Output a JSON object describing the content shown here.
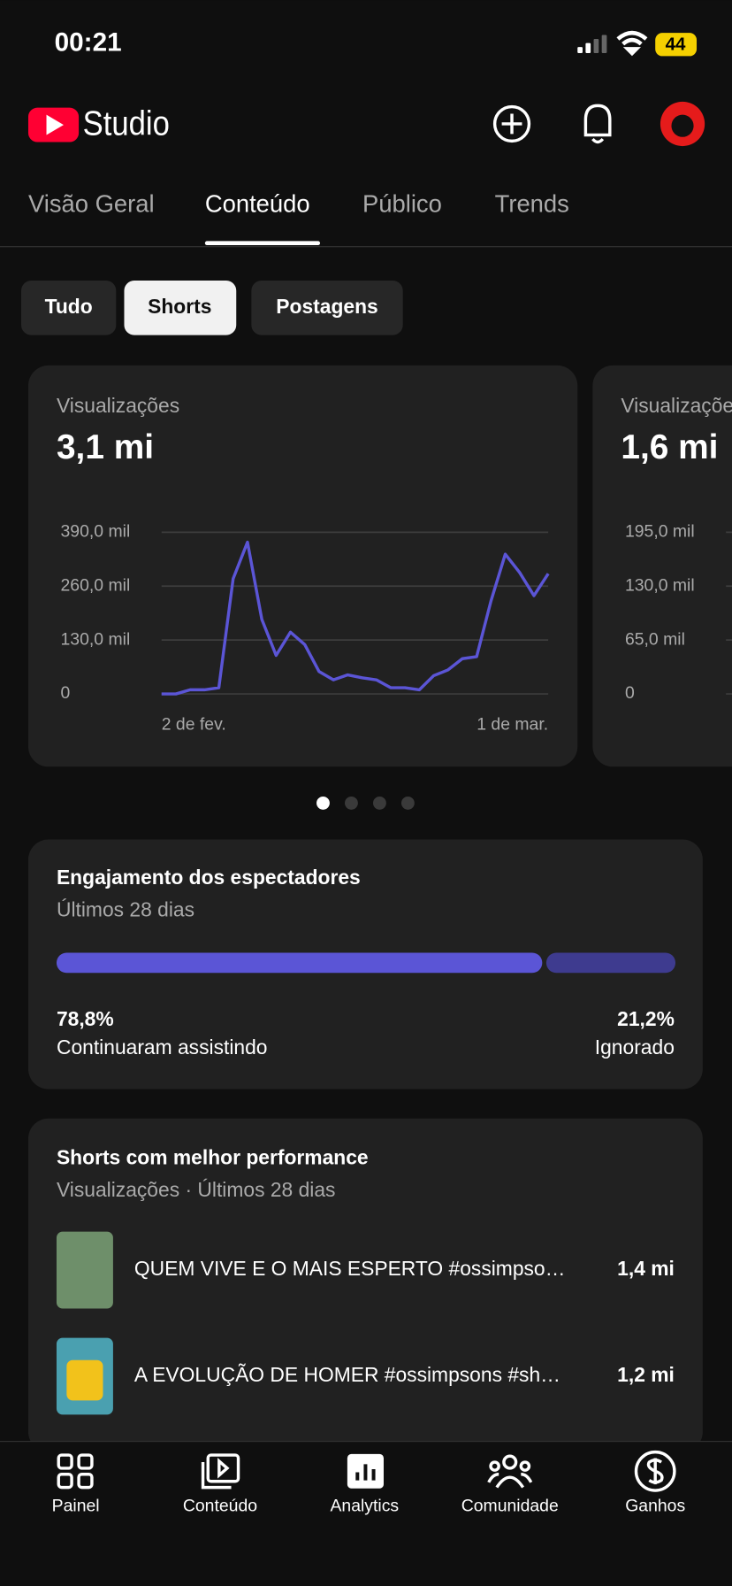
{
  "status_bar": {
    "time": "00:21",
    "battery": "44"
  },
  "header": {
    "app": "Studio"
  },
  "tabs": [
    "Visão Geral",
    "Conteúdo",
    "Público",
    "Trends"
  ],
  "chips": [
    "Tudo",
    "Shorts",
    "Postagens"
  ],
  "cards": [
    {
      "chart_data": {
        "type": "line",
        "title": "Visualizações",
        "total": "3,1 mi",
        "color": "#5b55d6",
        "grid": true,
        "categories": [
          "2 de fev.",
          null,
          null,
          null,
          null,
          null,
          null,
          null,
          null,
          null,
          null,
          null,
          null,
          null,
          null,
          null,
          null,
          null,
          null,
          null,
          null,
          null,
          null,
          null,
          null,
          null,
          null,
          "1 de mar."
        ],
        "values": [
          0,
          0,
          10000,
          10000,
          15000,
          278000,
          366000,
          180000,
          93000,
          149000,
          119000,
          54000,
          34000,
          46000,
          39000,
          34000,
          15000,
          15000,
          10000,
          44000,
          58000,
          85000,
          90000,
          224000,
          337000,
          293000,
          237000,
          290000
        ],
        "ylim": [
          0,
          390000
        ],
        "yticks": [
          {
            "value": 0,
            "label": "0"
          },
          {
            "value": 130000,
            "label": "130,0 mil"
          },
          {
            "value": 260000,
            "label": "260,0 mil"
          },
          {
            "value": 390000,
            "label": "390,0 mil"
          }
        ]
      }
    },
    {
      "chart_data": {
        "type": "line",
        "title": "Visualizações",
        "total": "1,6 mi",
        "grid": true,
        "ylim": [
          0,
          195000
        ],
        "yticks": [
          {
            "value": 0,
            "label": "0"
          },
          {
            "value": 65000,
            "label": "65,0 mil"
          },
          {
            "value": 130000,
            "label": "130,0 mil"
          },
          {
            "value": 195000,
            "label": "195,0 mil"
          }
        ]
      }
    }
  ],
  "engagement": {
    "title": "Engajamento dos espectadores",
    "subtitle": "Últimos 28 dias",
    "chart_data": {
      "type": "bar",
      "categories": [
        "Continuaram assistindo",
        "Ignorado"
      ],
      "values": [
        78.8,
        21.2
      ],
      "value_labels": [
        "78,8%",
        "21,2%"
      ],
      "colors": [
        "#5b55d6",
        "#3e3b8f"
      ],
      "xlim": [
        0,
        100
      ]
    }
  },
  "top_shorts": {
    "title": "Shorts com melhor performance",
    "subtitle": "Visualizações · Últimos 28 dias",
    "items": [
      {
        "title": "QUEM VIVE E O MAIS ESPERTO #ossimpso…",
        "views": "1,4 mi"
      },
      {
        "title": "A EVOLUÇÃO DE HOMER #ossimpsons #sh…",
        "views": "1,2 mi"
      }
    ]
  },
  "nav": [
    "Painel",
    "Conteúdo",
    "Analytics",
    "Comunidade",
    "Ganhos"
  ]
}
